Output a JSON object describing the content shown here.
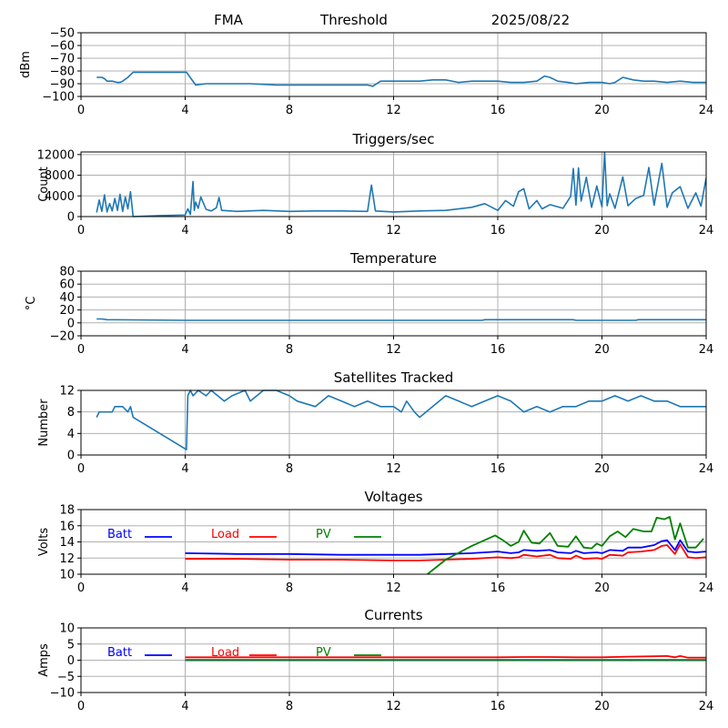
{
  "header": {
    "left": "FMA",
    "center": "Threshold",
    "right": "2025/08/22"
  },
  "colors": {
    "signal": "#1f77b4",
    "batt": "#0000ff",
    "load": "#ff0000",
    "pv": "#008000",
    "grid": "#b0b0b0"
  },
  "chart_data": [
    {
      "id": "dbm",
      "type": "line",
      "title": "",
      "xlabel": "",
      "ylabel": "dBm",
      "xlim": [
        0,
        24
      ],
      "ylim": [
        -100,
        -50
      ],
      "xticks": [
        0,
        4,
        8,
        12,
        16,
        20,
        24
      ],
      "yticks": [
        -100,
        -90,
        -80,
        -70,
        -60,
        -50
      ],
      "grid": true,
      "series": [
        {
          "color": "signal",
          "x": [
            0.6,
            0.8,
            0.9,
            1.0,
            1.2,
            1.4,
            1.5,
            1.6,
            1.8,
            2.0,
            2.5,
            3.0,
            3.5,
            4.05,
            4.4,
            4.8,
            5.5,
            6.5,
            7.5,
            8.5,
            9.5,
            10.5,
            11.0,
            11.2,
            11.5,
            12.0,
            12.5,
            13.0,
            13.5,
            14.0,
            14.5,
            15.0,
            15.5,
            16.0,
            16.5,
            17.0,
            17.5,
            17.8,
            18.0,
            18.3,
            18.7,
            19.0,
            19.5,
            20.0,
            20.3,
            20.5,
            20.8,
            21.2,
            21.6,
            22.0,
            22.5,
            23.0,
            23.5,
            24.0
          ],
          "y": [
            -85,
            -85,
            -86,
            -88,
            -88,
            -89,
            -89,
            -88,
            -85,
            -81,
            -81,
            -81,
            -81,
            -81,
            -91,
            -90,
            -90,
            -90,
            -91,
            -91,
            -91,
            -91,
            -91,
            -92,
            -88,
            -88,
            -88,
            -88,
            -87,
            -87,
            -89,
            -88,
            -88,
            -88,
            -89,
            -89,
            -88,
            -84,
            -85,
            -88,
            -89,
            -90,
            -89,
            -89,
            -90,
            -89,
            -85,
            -87,
            -88,
            -88,
            -89,
            -88,
            -89,
            -89
          ]
        }
      ]
    },
    {
      "id": "triggers",
      "type": "line",
      "title": "Triggers/sec",
      "xlabel": "",
      "ylabel": "Count",
      "xlim": [
        0,
        24
      ],
      "ylim": [
        0,
        12500
      ],
      "xticks": [
        0,
        4,
        8,
        12,
        16,
        20,
        24
      ],
      "yticks": [
        0,
        4000,
        8000,
        12000
      ],
      "grid": true,
      "series": [
        {
          "color": "signal",
          "x": [
            0.6,
            0.7,
            0.8,
            0.9,
            1.0,
            1.1,
            1.2,
            1.3,
            1.4,
            1.5,
            1.6,
            1.7,
            1.8,
            1.9,
            2.0,
            3.0,
            4.0,
            4.1,
            4.2,
            4.3,
            4.35,
            4.4,
            4.5,
            4.6,
            4.8,
            5.0,
            5.2,
            5.3,
            5.4,
            6.0,
            7.0,
            8.0,
            9.0,
            10.0,
            11.0,
            11.15,
            11.3,
            12.0,
            13.0,
            14.0,
            15.0,
            15.5,
            16.0,
            16.3,
            16.6,
            16.8,
            17.0,
            17.2,
            17.5,
            17.7,
            18.0,
            18.5,
            18.8,
            18.9,
            19.0,
            19.1,
            19.2,
            19.4,
            19.6,
            19.8,
            20.0,
            20.1,
            20.2,
            20.3,
            20.5,
            20.8,
            21.0,
            21.3,
            21.6,
            21.8,
            22.0,
            22.3,
            22.5,
            22.7,
            23.0,
            23.3,
            23.6,
            23.8,
            24.0
          ],
          "y": [
            800,
            3200,
            1000,
            4200,
            900,
            2500,
            1100,
            3500,
            1200,
            4300,
            1000,
            3800,
            1500,
            4800,
            0,
            200,
            300,
            1500,
            400,
            6800,
            1200,
            2800,
            1600,
            3800,
            1400,
            1100,
            1700,
            3700,
            1200,
            1000,
            1200,
            1000,
            1100,
            1100,
            1000,
            6100,
            1100,
            900,
            1100,
            1200,
            1800,
            2500,
            1200,
            3100,
            2000,
            4800,
            5400,
            1500,
            3100,
            1500,
            2300,
            1600,
            3900,
            9300,
            2200,
            9400,
            3000,
            7600,
            1800,
            5900,
            1900,
            12400,
            2100,
            4400,
            1600,
            7700,
            2100,
            3500,
            4100,
            9500,
            2200,
            10300,
            1800,
            4600,
            5800,
            1600,
            4600,
            2000,
            7500
          ]
        }
      ]
    },
    {
      "id": "temperature",
      "type": "line",
      "title": "Temperature",
      "xlabel": "",
      "ylabel": "°C",
      "xlim": [
        0,
        24
      ],
      "ylim": [
        -20,
        80
      ],
      "xticks": [
        0,
        4,
        8,
        12,
        16,
        20,
        24
      ],
      "yticks": [
        -20,
        0,
        20,
        40,
        60,
        80
      ],
      "grid": true,
      "series": [
        {
          "color": "signal",
          "x": [
            0.6,
            0.8,
            1.0,
            4.0,
            8.0,
            12.0,
            15.4,
            15.5,
            18.9,
            19.0,
            21.3,
            21.4,
            24.0
          ],
          "y": [
            6,
            6,
            5,
            4,
            4,
            4,
            4,
            5,
            5,
            4,
            4,
            5,
            5
          ]
        }
      ]
    },
    {
      "id": "satellites",
      "type": "line",
      "title": "Satellites Tracked",
      "xlabel": "",
      "ylabel": "Number",
      "xlim": [
        0,
        24
      ],
      "ylim": [
        0,
        12
      ],
      "xticks": [
        0,
        4,
        8,
        12,
        16,
        20,
        24
      ],
      "yticks": [
        0,
        4,
        8,
        12
      ],
      "grid": true,
      "series": [
        {
          "color": "signal",
          "x": [
            0.6,
            0.7,
            1.2,
            1.3,
            1.6,
            1.8,
            1.9,
            2.0,
            4.05,
            4.1,
            4.2,
            4.3,
            4.5,
            4.8,
            5.0,
            5.5,
            5.8,
            6.3,
            6.5,
            7.0,
            7.5,
            8.0,
            8.3,
            9.0,
            9.5,
            10.0,
            10.5,
            11.0,
            11.5,
            12.0,
            12.3,
            12.5,
            12.8,
            13.0,
            13.5,
            14.0,
            14.5,
            15.0,
            15.5,
            16.0,
            16.5,
            17.0,
            17.5,
            18.0,
            18.5,
            19.0,
            19.5,
            20.0,
            20.5,
            21.0,
            21.5,
            22.0,
            22.5,
            23.0,
            23.5,
            24.0
          ],
          "y": [
            7,
            8,
            8,
            9,
            9,
            8,
            9,
            7,
            1,
            11,
            12,
            11,
            12,
            11,
            12,
            10,
            11,
            12,
            10,
            12,
            12,
            11,
            10,
            9,
            11,
            10,
            9,
            10,
            9,
            9,
            8,
            10,
            8,
            7,
            9,
            11,
            10,
            9,
            10,
            11,
            10,
            8,
            9,
            8,
            9,
            9,
            10,
            10,
            11,
            10,
            11,
            10,
            10,
            9,
            9,
            9
          ]
        }
      ]
    },
    {
      "id": "voltages",
      "type": "line",
      "title": "Voltages",
      "xlabel": "",
      "ylabel": "Volts",
      "xlim": [
        0,
        24
      ],
      "ylim": [
        10,
        18
      ],
      "xticks": [
        0,
        4,
        8,
        12,
        16,
        20,
        24
      ],
      "yticks": [
        10,
        12,
        14,
        16,
        18
      ],
      "grid": true,
      "series": [
        {
          "name": "Batt",
          "color": "batt",
          "x": [
            4.0,
            6.0,
            8.0,
            10.0,
            12.0,
            13.0,
            14.0,
            15.0,
            16.0,
            16.5,
            16.8,
            17.0,
            17.5,
            18.0,
            18.3,
            18.8,
            19.0,
            19.3,
            19.8,
            20.0,
            20.3,
            20.8,
            21.0,
            21.5,
            22.0,
            22.3,
            22.5,
            22.8,
            23.0,
            23.3,
            23.6,
            24.0
          ],
          "y": [
            12.6,
            12.5,
            12.5,
            12.4,
            12.4,
            12.4,
            12.5,
            12.6,
            12.8,
            12.6,
            12.7,
            13.0,
            12.9,
            13.0,
            12.7,
            12.6,
            12.9,
            12.6,
            12.7,
            12.6,
            13.0,
            12.9,
            13.3,
            13.3,
            13.6,
            14.1,
            14.2,
            13.0,
            14.2,
            12.8,
            12.7,
            12.8
          ]
        },
        {
          "name": "Load",
          "color": "load",
          "x": [
            4.0,
            6.0,
            8.0,
            10.0,
            12.0,
            13.0,
            14.0,
            15.0,
            16.0,
            16.5,
            16.8,
            17.0,
            17.5,
            18.0,
            18.3,
            18.8,
            19.0,
            19.3,
            19.8,
            20.0,
            20.3,
            20.8,
            21.0,
            21.5,
            22.0,
            22.3,
            22.5,
            22.8,
            23.0,
            23.3,
            23.6,
            24.0
          ],
          "y": [
            11.9,
            11.9,
            11.8,
            11.8,
            11.7,
            11.7,
            11.8,
            11.9,
            12.1,
            12.0,
            12.1,
            12.4,
            12.2,
            12.4,
            12.0,
            11.9,
            12.3,
            11.9,
            12.0,
            11.9,
            12.4,
            12.3,
            12.7,
            12.8,
            13.0,
            13.5,
            13.6,
            12.5,
            13.7,
            12.1,
            12.0,
            12.1
          ]
        },
        {
          "name": "PV",
          "color": "pv",
          "x": [
            13.3,
            14.0,
            15.0,
            15.9,
            16.2,
            16.5,
            16.8,
            17.0,
            17.3,
            17.6,
            18.0,
            18.3,
            18.7,
            19.0,
            19.3,
            19.6,
            19.8,
            20.0,
            20.3,
            20.6,
            20.9,
            21.2,
            21.6,
            21.9,
            22.1,
            22.4,
            22.6,
            22.8,
            23.0,
            23.3,
            23.6,
            23.9
          ],
          "y": [
            10.0,
            11.8,
            13.5,
            14.8,
            14.2,
            13.5,
            14.0,
            15.4,
            13.9,
            13.8,
            15.1,
            13.5,
            13.4,
            14.7,
            13.3,
            13.2,
            13.8,
            13.5,
            14.7,
            15.3,
            14.6,
            15.6,
            15.3,
            15.3,
            17.0,
            16.8,
            17.1,
            14.3,
            16.3,
            13.3,
            13.3,
            14.4
          ]
        }
      ]
    },
    {
      "id": "currents",
      "type": "line",
      "title": "Currents",
      "xlabel": "",
      "ylabel": "Amps",
      "xlim": [
        0,
        24
      ],
      "ylim": [
        -10,
        10
      ],
      "xticks": [
        0,
        4,
        8,
        12,
        16,
        20,
        24
      ],
      "yticks": [
        -10,
        -5,
        0,
        5,
        10
      ],
      "grid": true,
      "series": [
        {
          "name": "Batt",
          "color": "batt",
          "x": [
            4.0,
            24.0
          ],
          "y": [
            0,
            0
          ]
        },
        {
          "name": "Load",
          "color": "load",
          "x": [
            4.0,
            8.0,
            12.0,
            16.0,
            17.0,
            18.0,
            19.0,
            20.0,
            21.0,
            22.0,
            22.5,
            22.8,
            23.0,
            23.3,
            24.0
          ],
          "y": [
            0.9,
            0.9,
            0.9,
            0.9,
            1.0,
            1.0,
            0.9,
            0.9,
            1.1,
            1.2,
            1.3,
            0.9,
            1.3,
            0.8,
            0.8
          ]
        },
        {
          "name": "PV",
          "color": "pv",
          "x": [
            4.0,
            24.0
          ],
          "y": [
            0.1,
            0.1
          ]
        }
      ]
    }
  ]
}
